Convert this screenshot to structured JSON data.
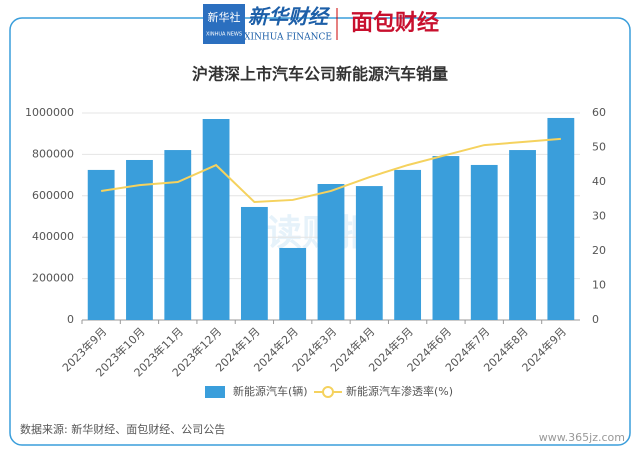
{
  "header": {
    "logo1": "新华社",
    "logo1_sub": "XINHUA NEWS",
    "logo2": "新华财经",
    "logo2_sub": "XINHUA FINANCE",
    "logo3": "面包财经"
  },
  "chart_data": {
    "type": "bar",
    "title": "沪港深上市汽车公司新能源汽车销量",
    "categories": [
      "2023年9月",
      "2023年10月",
      "2023年11月",
      "2023年12月",
      "2024年1月",
      "2024年2月",
      "2024年3月",
      "2024年4月",
      "2024年5月",
      "2024年6月",
      "2024年7月",
      "2024年8月",
      "2024年9月"
    ],
    "series": [
      {
        "name": "新能源汽车(辆)",
        "type": "bar",
        "color": "#3a9edb",
        "values": [
          725000,
          773000,
          821000,
          971000,
          546000,
          348000,
          657000,
          647000,
          725000,
          792000,
          749000,
          821000,
          976000
        ]
      },
      {
        "name": "新能源汽车渗透率(%)",
        "type": "line",
        "axis": "y2",
        "color": "#f5d25e",
        "values": [
          37.4,
          39.1,
          40,
          44.9,
          34.2,
          34.8,
          37.4,
          41.4,
          44.9,
          47.8,
          50.7,
          51.6,
          52.5
        ]
      }
    ],
    "ylim": [
      0,
      1000000
    ],
    "yticks": [
      0,
      200000,
      400000,
      600000,
      800000,
      1000000
    ],
    "y2lim": [
      0,
      60
    ],
    "y2ticks": [
      0,
      10,
      20,
      30,
      40,
      50,
      60
    ],
    "grid": true,
    "legend": "bottom",
    "watermark": "读财报",
    "source": "数据来源: 新华财经、面包财经、公司公告"
  },
  "footer": "www.365jz.com"
}
